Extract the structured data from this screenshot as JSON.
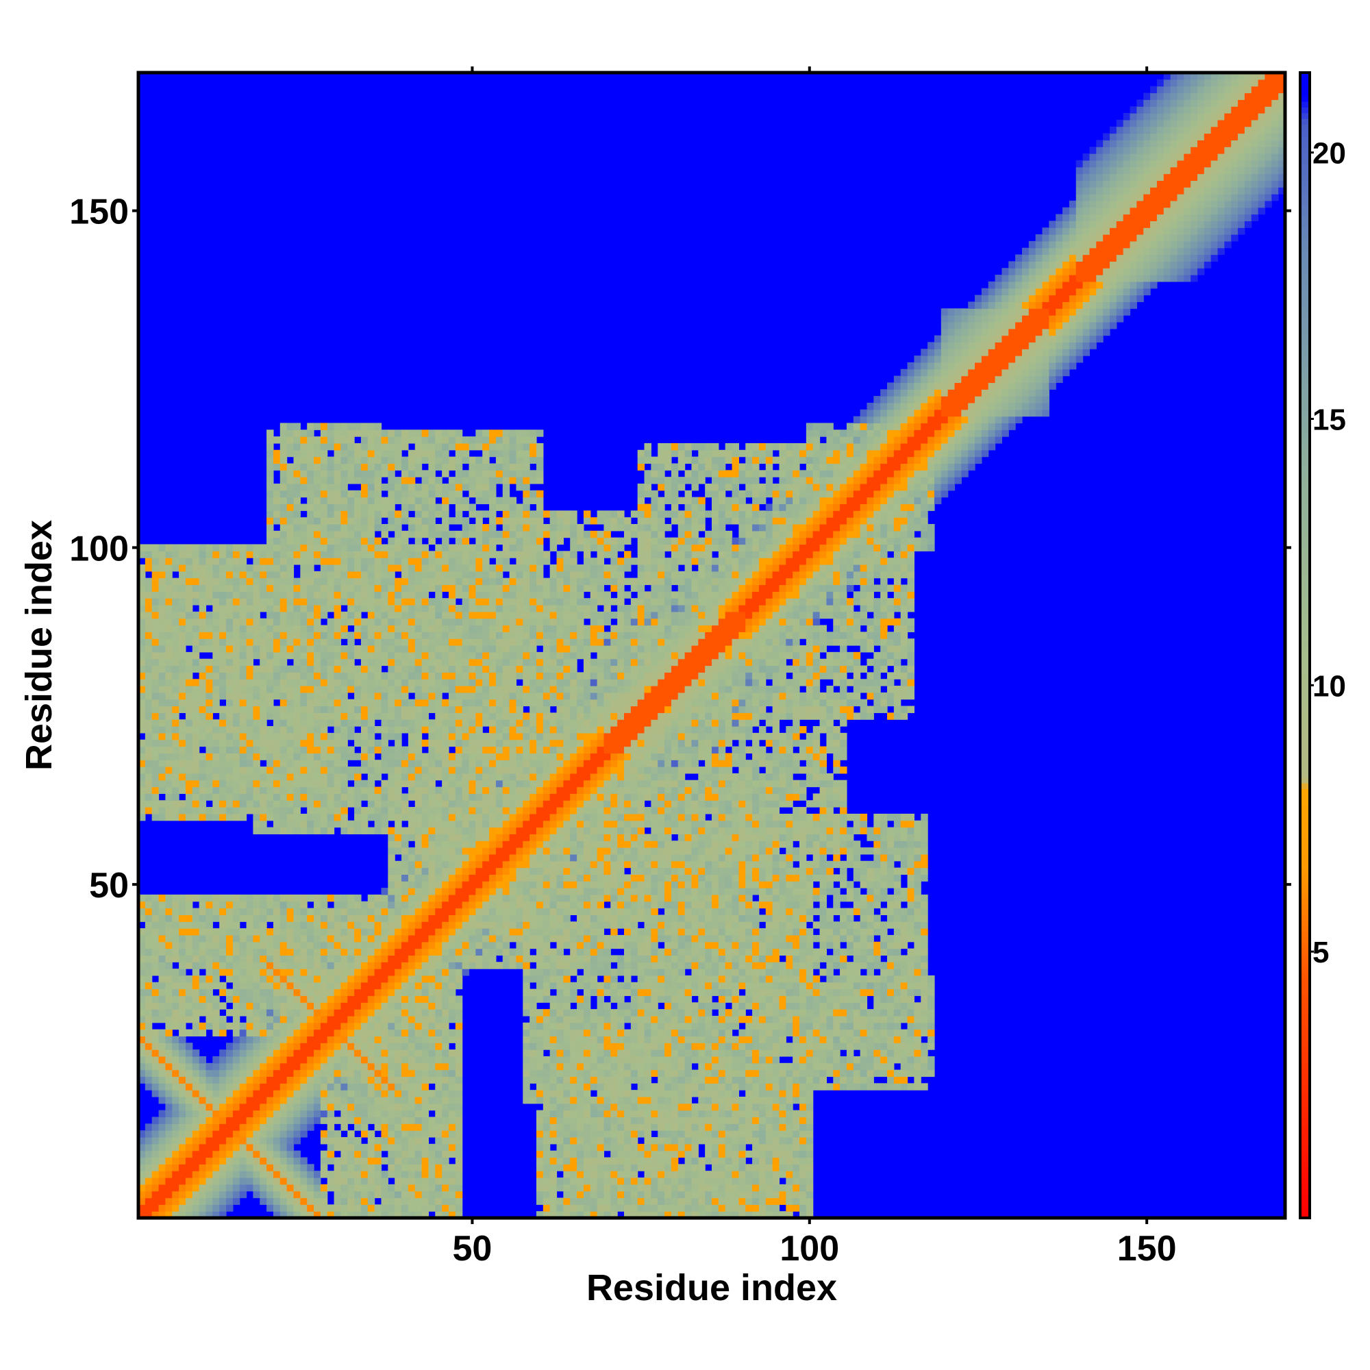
{
  "chart_data": {
    "type": "heatmap",
    "title": "",
    "xlabel": "Residue index",
    "ylabel": "Residue index",
    "n_residues": 170,
    "xlim": [
      1,
      170
    ],
    "ylim": [
      1,
      170
    ],
    "x_ticks": [
      50,
      100,
      150
    ],
    "y_ticks": [
      50,
      100,
      150
    ],
    "colorbar": {
      "range": [
        0,
        21.5
      ],
      "ticks": [
        5,
        10,
        15,
        20
      ],
      "stops": [
        {
          "value": 0,
          "color": "#ff0000"
        },
        {
          "value": 4.5,
          "color": "#ff5500"
        },
        {
          "value": 6.5,
          "color": "#ff9900"
        },
        {
          "value": 8,
          "color": "#ffa500"
        },
        {
          "value": 8.2,
          "color": "#b4b982"
        },
        {
          "value": 10.5,
          "color": "#a6bd8c"
        },
        {
          "value": 14,
          "color": "#8fb09c"
        },
        {
          "value": 18,
          "color": "#6b8cb4"
        },
        {
          "value": 20.5,
          "color": "#4a5fc8"
        },
        {
          "value": 21,
          "color": "#0000ff"
        }
      ],
      "cutoff_color": "#0000ff"
    },
    "structure": {
      "diagonal_core": "distance rises from 0 on the diagonal to ~21 at |i-j|=6",
      "contact_regions": [
        {
          "x": [
            1,
            45
          ],
          "y": [
            28,
            48
          ],
          "mean_distance": 10.5
        },
        {
          "x": [
            1,
            20
          ],
          "y": [
            60,
            100
          ],
          "mean_distance": 10.5
        },
        {
          "x": [
            18,
            40
          ],
          "y": [
            58,
            100
          ],
          "mean_distance": 11
        },
        {
          "x": [
            20,
            60
          ],
          "y": [
            92,
            117
          ],
          "mean_distance": 11
        },
        {
          "x": [
            35,
            65
          ],
          "y": [
            60,
            95
          ],
          "mean_distance": 11
        },
        {
          "x": [
            38,
            62
          ],
          "y": [
            48,
            70
          ],
          "mean_distance": 10.5
        },
        {
          "x": [
            55,
            75
          ],
          "y": [
            42,
            70
          ],
          "mean_distance": 10.5
        },
        {
          "x": [
            70,
            105
          ],
          "y": [
            55,
            78
          ],
          "mean_distance": 10.5
        },
        {
          "x": [
            75,
            100
          ],
          "y": [
            30,
            60
          ],
          "mean_distance": 11
        },
        {
          "x": [
            90,
            118
          ],
          "y": [
            22,
            36
          ],
          "mean_distance": 11.5
        },
        {
          "x": [
            60,
            100
          ],
          "y": [
            1,
            30
          ],
          "mean_distance": 11
        },
        {
          "x": [
            35,
            48
          ],
          "y": [
            1,
            25
          ],
          "mean_distance": 11.5
        },
        {
          "x": [
            75,
            105
          ],
          "y": [
            95,
            115
          ],
          "mean_distance": 11
        },
        {
          "x": [
            74,
            95
          ],
          "y": [
            72,
            88
          ],
          "mean_distance": 11.5
        },
        {
          "x": [
            105,
            118
          ],
          "y": [
            100,
            115
          ],
          "mean_distance": 12
        }
      ],
      "antiparallel_strands": [
        {
          "from": [
            1,
            27
          ],
          "to": [
            27,
            1
          ]
        },
        {
          "from": [
            20,
            38
          ],
          "to": [
            38,
            20
          ]
        }
      ],
      "helical_segments": [
        [
          120,
          135
        ],
        [
          140,
          170
        ],
        [
          70,
          90
        ]
      ]
    }
  }
}
